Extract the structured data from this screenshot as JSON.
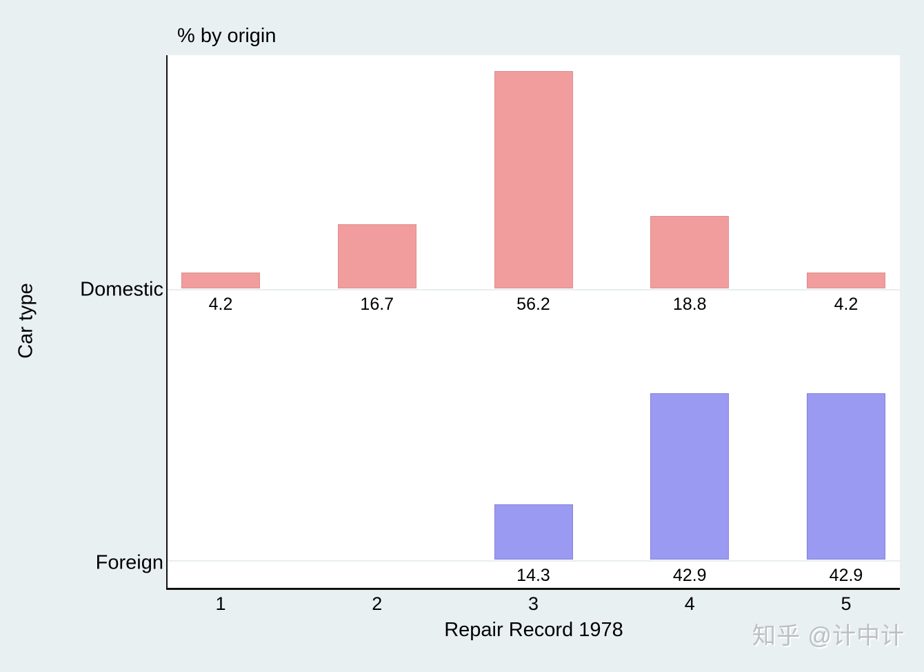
{
  "chart_data": {
    "type": "bar",
    "title": "% by origin",
    "xlabel": "Repair Record 1978",
    "ylabel": "Car type",
    "categories": [
      "1",
      "2",
      "3",
      "4",
      "5"
    ],
    "value_unit": "percent",
    "grid": false,
    "legend": "none",
    "panels": [
      {
        "name": "Domestic",
        "values": [
          4.2,
          16.7,
          56.2,
          18.8,
          4.2
        ],
        "value_labels": [
          "4.2",
          "16.7",
          "56.2",
          "18.8",
          "4.2"
        ],
        "fill": "#f29d9d",
        "border": "#dd8e8e"
      },
      {
        "name": "Foreign",
        "values": [
          null,
          null,
          14.3,
          42.9,
          42.9
        ],
        "value_labels": [
          "",
          "",
          "14.3",
          "42.9",
          "42.9"
        ],
        "fill": "#9a9af2",
        "border": "#8282da"
      }
    ]
  },
  "colors": {
    "page_background": "#e9f0f2",
    "plot_background": "#ffffff",
    "axis_line": "#111111",
    "baseline": "#e7eef0",
    "text": "#000000",
    "watermark": "#bcc0c2"
  },
  "watermark": {
    "text": "知乎 @计中计"
  }
}
